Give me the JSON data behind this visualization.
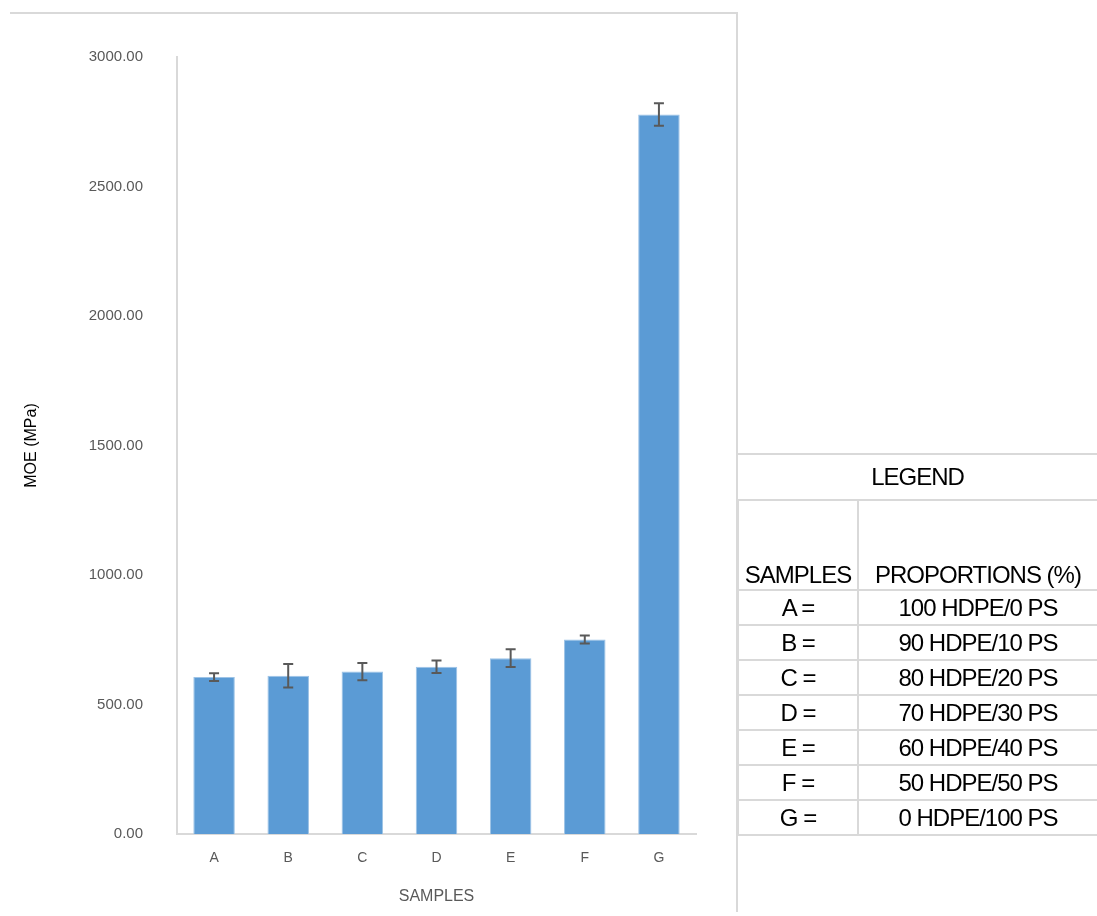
{
  "chart_data": [
    {
      "type": "bar",
      "xlabel": "SAMPLES",
      "ylabel": "MOE (MPa)",
      "categories": [
        "A",
        "B",
        "C",
        "D",
        "E",
        "F",
        "G"
      ],
      "values": [
        606,
        611,
        627,
        646,
        679,
        751,
        2778
      ],
      "errors": [
        15,
        45,
        33,
        24,
        34,
        15,
        43
      ],
      "color": "#5b9bd5",
      "ylim": [
        0,
        3000
      ],
      "yticks": [
        {
          "value": 0,
          "label": "0.00"
        },
        {
          "value": 500,
          "label": "500.00"
        },
        {
          "value": 1000,
          "label": "1000.00"
        },
        {
          "value": 1500,
          "label": "1500.00"
        },
        {
          "value": 2000,
          "label": "2000.00"
        },
        {
          "value": 2500,
          "label": "2500.00"
        },
        {
          "value": 3000,
          "label": "3000.00"
        }
      ]
    },
    {
      "type": "other",
      "title": "LEGEND",
      "annotations": [
        "SAMPLES",
        "PROPORTIONS (%)",
        "A =",
        "100 HDPE/0 PS",
        "B =",
        "90 HDPE/10 PS",
        "C =",
        "80 HDPE/20 PS",
        "D =",
        "70 HDPE/30 PS",
        "E =",
        "60 HDPE/40 PS",
        "F =",
        "50 HDPE/50 PS",
        "G =",
        "0 HDPE/100 PS"
      ]
    }
  ]
}
